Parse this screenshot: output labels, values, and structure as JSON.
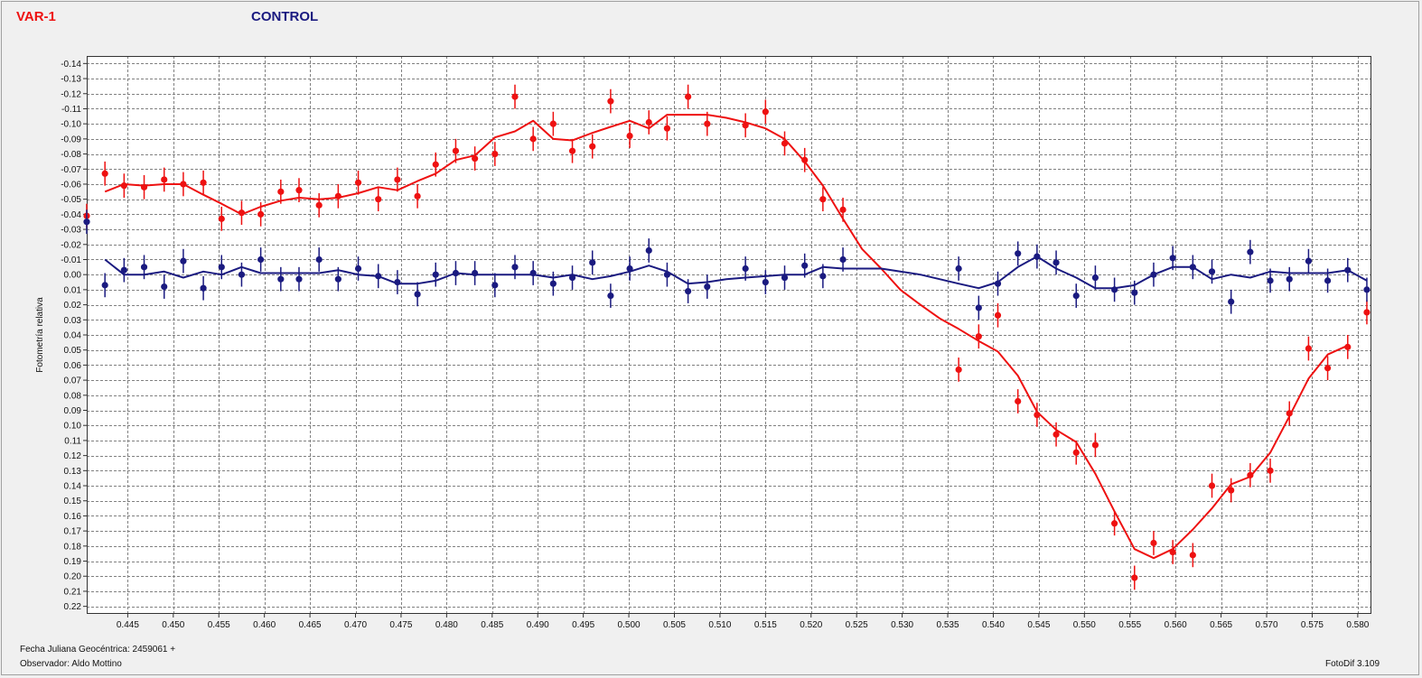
{
  "window": {
    "software_version": "FotoDif 3.109"
  },
  "legend": {
    "variable": "VAR-1",
    "control": "CONTROL"
  },
  "footer": {
    "julian_date": "Fecha Juliana Geocéntrica: 2459061 +",
    "observer": "Observador: Aldo Mottino"
  },
  "colors": {
    "variable": "#ee1111",
    "control": "#1a1a80",
    "grid": "#808080",
    "plot_bg": "#ffffff"
  },
  "chart_data": {
    "type": "scatter",
    "title": "",
    "xlabel": "",
    "ylabel": "Fotometría relativa",
    "xlim": [
      0.4405,
      0.5815
    ],
    "ylim": [
      -0.145,
      0.225
    ],
    "y_inverted": true,
    "grid": true,
    "x_ticks": [
      "0.445",
      "0.450",
      "0.455",
      "0.460",
      "0.465",
      "0.470",
      "0.475",
      "0.480",
      "0.485",
      "0.490",
      "0.495",
      "0.500",
      "0.505",
      "0.510",
      "0.515",
      "0.520",
      "0.525",
      "0.530",
      "0.535",
      "0.540",
      "0.545",
      "0.550",
      "0.555",
      "0.560",
      "0.565",
      "0.570",
      "0.575",
      "0.580"
    ],
    "y_ticks": [
      "-0.14",
      "-0.13",
      "-0.12",
      "-0.11",
      "-0.10",
      "-0.09",
      "-0.08",
      "-0.07",
      "-0.06",
      "-0.05",
      "-0.04",
      "-0.03",
      "-0.02",
      "-0.01",
      "0.00",
      "0.01",
      "0.02",
      "0.03",
      "0.04",
      "0.05",
      "0.06",
      "0.07",
      "0.08",
      "0.09",
      "0.10",
      "0.11",
      "0.12",
      "0.13",
      "0.14",
      "0.15",
      "0.16",
      "0.17",
      "0.18",
      "0.19",
      "0.20",
      "0.21",
      "0.22"
    ],
    "error_bar": 0.008,
    "series": [
      {
        "name": "VAR-1",
        "points": [
          [
            0.4405,
            -0.039
          ],
          [
            0.4425,
            -0.067
          ],
          [
            0.4446,
            -0.059
          ],
          [
            0.4468,
            -0.058
          ],
          [
            0.449,
            -0.063
          ],
          [
            0.4511,
            -0.06
          ],
          [
            0.4533,
            -0.061
          ],
          [
            0.4553,
            -0.037
          ],
          [
            0.4575,
            -0.041
          ],
          [
            0.4596,
            -0.04
          ],
          [
            0.4618,
            -0.055
          ],
          [
            0.4638,
            -0.056
          ],
          [
            0.466,
            -0.046
          ],
          [
            0.4681,
            -0.052
          ],
          [
            0.4703,
            -0.061
          ],
          [
            0.4725,
            -0.05
          ],
          [
            0.4746,
            -0.063
          ],
          [
            0.4768,
            -0.052
          ],
          [
            0.4788,
            -0.073
          ],
          [
            0.481,
            -0.082
          ],
          [
            0.4831,
            -0.077
          ],
          [
            0.4853,
            -0.08
          ],
          [
            0.4875,
            -0.118
          ],
          [
            0.4895,
            -0.09
          ],
          [
            0.4917,
            -0.1
          ],
          [
            0.4938,
            -0.082
          ],
          [
            0.496,
            -0.085
          ],
          [
            0.498,
            -0.115
          ],
          [
            0.5001,
            -0.092
          ],
          [
            0.5022,
            -0.101
          ],
          [
            0.5042,
            -0.097
          ],
          [
            0.5065,
            -0.118
          ],
          [
            0.5086,
            -0.1
          ],
          [
            0.5128,
            -0.099
          ],
          [
            0.515,
            -0.108
          ],
          [
            0.5171,
            -0.087
          ],
          [
            0.5193,
            -0.076
          ],
          [
            0.5213,
            -0.05
          ],
          [
            0.5235,
            -0.043
          ],
          [
            0.5362,
            0.063
          ],
          [
            0.5384,
            0.041
          ],
          [
            0.5405,
            0.027
          ],
          [
            0.5427,
            0.084
          ],
          [
            0.5448,
            0.093
          ],
          [
            0.5469,
            0.106
          ],
          [
            0.5491,
            0.118
          ],
          [
            0.5512,
            0.113
          ],
          [
            0.5533,
            0.165
          ],
          [
            0.5555,
            0.201
          ],
          [
            0.5576,
            0.178
          ],
          [
            0.5597,
            0.184
          ],
          [
            0.5619,
            0.186
          ],
          [
            0.564,
            0.14
          ],
          [
            0.5661,
            0.143
          ],
          [
            0.5682,
            0.133
          ],
          [
            0.5704,
            0.13
          ],
          [
            0.5725,
            0.092
          ],
          [
            0.5746,
            0.049
          ],
          [
            0.5767,
            0.062
          ],
          [
            0.5789,
            0.048
          ],
          [
            0.581,
            0.025
          ]
        ],
        "fit": [
          [
            0.4425,
            -0.055
          ],
          [
            0.4446,
            -0.06
          ],
          [
            0.4468,
            -0.059
          ],
          [
            0.449,
            -0.06
          ],
          [
            0.4511,
            -0.06
          ],
          [
            0.4533,
            -0.053
          ],
          [
            0.4553,
            -0.047
          ],
          [
            0.4575,
            -0.04
          ],
          [
            0.4596,
            -0.045
          ],
          [
            0.4618,
            -0.049
          ],
          [
            0.4638,
            -0.051
          ],
          [
            0.466,
            -0.05
          ],
          [
            0.4681,
            -0.051
          ],
          [
            0.4703,
            -0.054
          ],
          [
            0.4725,
            -0.058
          ],
          [
            0.4746,
            -0.056
          ],
          [
            0.4768,
            -0.062
          ],
          [
            0.4788,
            -0.067
          ],
          [
            0.481,
            -0.076
          ],
          [
            0.4831,
            -0.079
          ],
          [
            0.4853,
            -0.091
          ],
          [
            0.4875,
            -0.095
          ],
          [
            0.4895,
            -0.102
          ],
          [
            0.4917,
            -0.09
          ],
          [
            0.4938,
            -0.089
          ],
          [
            0.496,
            -0.094
          ],
          [
            0.498,
            -0.098
          ],
          [
            0.5001,
            -0.102
          ],
          [
            0.5022,
            -0.097
          ],
          [
            0.5042,
            -0.106
          ],
          [
            0.5065,
            -0.106
          ],
          [
            0.5086,
            -0.106
          ],
          [
            0.5107,
            -0.104
          ],
          [
            0.5128,
            -0.101
          ],
          [
            0.515,
            -0.097
          ],
          [
            0.5171,
            -0.09
          ],
          [
            0.5193,
            -0.075
          ],
          [
            0.5213,
            -0.059
          ],
          [
            0.5235,
            -0.037
          ],
          [
            0.5256,
            -0.017
          ],
          [
            0.5277,
            -0.004
          ],
          [
            0.5298,
            0.01
          ],
          [
            0.532,
            0.02
          ],
          [
            0.5341,
            0.029
          ],
          [
            0.5362,
            0.036
          ],
          [
            0.5384,
            0.044
          ],
          [
            0.5405,
            0.051
          ],
          [
            0.5427,
            0.067
          ],
          [
            0.5448,
            0.091
          ],
          [
            0.5469,
            0.103
          ],
          [
            0.5491,
            0.111
          ],
          [
            0.5512,
            0.132
          ],
          [
            0.5533,
            0.157
          ],
          [
            0.5555,
            0.182
          ],
          [
            0.5576,
            0.188
          ],
          [
            0.5597,
            0.182
          ],
          [
            0.5619,
            0.169
          ],
          [
            0.564,
            0.155
          ],
          [
            0.5661,
            0.139
          ],
          [
            0.5682,
            0.134
          ],
          [
            0.5704,
            0.118
          ],
          [
            0.5725,
            0.094
          ],
          [
            0.5746,
            0.069
          ],
          [
            0.5767,
            0.053
          ],
          [
            0.5789,
            0.047
          ]
        ]
      },
      {
        "name": "CONTROL",
        "points": [
          [
            0.4405,
            -0.035
          ],
          [
            0.4425,
            0.007
          ],
          [
            0.4446,
            -0.003
          ],
          [
            0.4468,
            -0.005
          ],
          [
            0.449,
            0.008
          ],
          [
            0.4511,
            -0.009
          ],
          [
            0.4533,
            0.009
          ],
          [
            0.4553,
            -0.005
          ],
          [
            0.4575,
            0.0
          ],
          [
            0.4596,
            -0.01
          ],
          [
            0.4618,
            0.003
          ],
          [
            0.4638,
            0.003
          ],
          [
            0.466,
            -0.01
          ],
          [
            0.4681,
            0.003
          ],
          [
            0.4703,
            -0.004
          ],
          [
            0.4725,
            0.001
          ],
          [
            0.4746,
            0.005
          ],
          [
            0.4768,
            0.013
          ],
          [
            0.4788,
            0.0
          ],
          [
            0.481,
            -0.001
          ],
          [
            0.4831,
            -0.001
          ],
          [
            0.4853,
            0.007
          ],
          [
            0.4875,
            -0.005
          ],
          [
            0.4895,
            -0.001
          ],
          [
            0.4917,
            0.006
          ],
          [
            0.4938,
            0.002
          ],
          [
            0.496,
            -0.008
          ],
          [
            0.498,
            0.014
          ],
          [
            0.5001,
            -0.004
          ],
          [
            0.5022,
            -0.016
          ],
          [
            0.5042,
            0.0
          ],
          [
            0.5065,
            0.011
          ],
          [
            0.5086,
            0.008
          ],
          [
            0.5128,
            -0.004
          ],
          [
            0.515,
            0.005
          ],
          [
            0.5171,
            0.002
          ],
          [
            0.5193,
            -0.006
          ],
          [
            0.5213,
            0.001
          ],
          [
            0.5235,
            -0.01
          ],
          [
            0.5362,
            -0.004
          ],
          [
            0.5384,
            0.022
          ],
          [
            0.5405,
            0.006
          ],
          [
            0.5427,
            -0.014
          ],
          [
            0.5448,
            -0.012
          ],
          [
            0.5469,
            -0.008
          ],
          [
            0.5491,
            0.014
          ],
          [
            0.5512,
            0.002
          ],
          [
            0.5533,
            0.01
          ],
          [
            0.5555,
            0.012
          ],
          [
            0.5576,
            0.0
          ],
          [
            0.5597,
            -0.011
          ],
          [
            0.5619,
            -0.005
          ],
          [
            0.564,
            -0.002
          ],
          [
            0.5661,
            0.018
          ],
          [
            0.5682,
            -0.015
          ],
          [
            0.5704,
            0.004
          ],
          [
            0.5725,
            0.003
          ],
          [
            0.5746,
            -0.009
          ],
          [
            0.5767,
            0.004
          ],
          [
            0.5789,
            -0.003
          ],
          [
            0.581,
            0.01
          ]
        ],
        "fit": [
          [
            0.4425,
            -0.01
          ],
          [
            0.4446,
            0.0
          ],
          [
            0.4468,
            0.0
          ],
          [
            0.449,
            -0.002
          ],
          [
            0.4511,
            0.002
          ],
          [
            0.4533,
            -0.002
          ],
          [
            0.4553,
            0.0
          ],
          [
            0.4575,
            -0.005
          ],
          [
            0.4596,
            -0.001
          ],
          [
            0.4618,
            -0.001
          ],
          [
            0.4638,
            -0.001
          ],
          [
            0.466,
            -0.001
          ],
          [
            0.4681,
            -0.003
          ],
          [
            0.4703,
            0.0
          ],
          [
            0.4725,
            0.001
          ],
          [
            0.4746,
            0.006
          ],
          [
            0.4768,
            0.006
          ],
          [
            0.4788,
            0.004
          ],
          [
            0.481,
            -0.001
          ],
          [
            0.4831,
            0.0
          ],
          [
            0.4853,
            0.0
          ],
          [
            0.4875,
            0.0
          ],
          [
            0.4895,
            0.0
          ],
          [
            0.4917,
            0.002
          ],
          [
            0.4938,
            0.0
          ],
          [
            0.496,
            0.003
          ],
          [
            0.498,
            0.001
          ],
          [
            0.5001,
            -0.002
          ],
          [
            0.5022,
            -0.006
          ],
          [
            0.5042,
            -0.002
          ],
          [
            0.5065,
            0.006
          ],
          [
            0.5086,
            0.005
          ],
          [
            0.5107,
            0.003
          ],
          [
            0.5128,
            0.002
          ],
          [
            0.515,
            0.001
          ],
          [
            0.5171,
            0.0
          ],
          [
            0.5193,
            0.0
          ],
          [
            0.5213,
            -0.005
          ],
          [
            0.5235,
            -0.004
          ],
          [
            0.5256,
            -0.004
          ],
          [
            0.5277,
            -0.004
          ],
          [
            0.5298,
            -0.002
          ],
          [
            0.532,
            0.0
          ],
          [
            0.5341,
            0.003
          ],
          [
            0.5362,
            0.006
          ],
          [
            0.5384,
            0.009
          ],
          [
            0.5405,
            0.005
          ],
          [
            0.5427,
            -0.005
          ],
          [
            0.5448,
            -0.012
          ],
          [
            0.5469,
            -0.004
          ],
          [
            0.5491,
            0.002
          ],
          [
            0.5512,
            0.009
          ],
          [
            0.5533,
            0.009
          ],
          [
            0.5555,
            0.007
          ],
          [
            0.5576,
            0.0
          ],
          [
            0.5597,
            -0.005
          ],
          [
            0.5619,
            -0.005
          ],
          [
            0.564,
            0.003
          ],
          [
            0.5661,
            0.0
          ],
          [
            0.5682,
            0.002
          ],
          [
            0.5704,
            -0.002
          ],
          [
            0.5725,
            -0.001
          ],
          [
            0.5746,
            -0.001
          ],
          [
            0.5767,
            -0.001
          ],
          [
            0.5789,
            -0.003
          ],
          [
            0.581,
            0.004
          ]
        ]
      }
    ]
  }
}
